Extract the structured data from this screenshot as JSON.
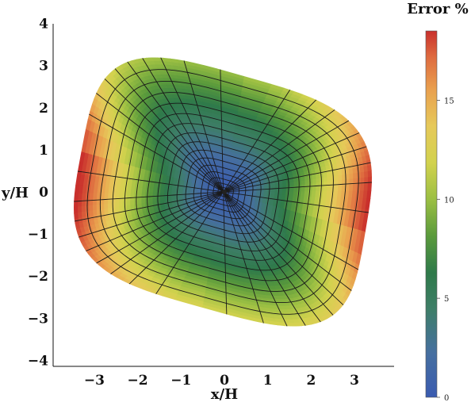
{
  "chart_data": {
    "type": "heatmap",
    "xlabel": "x/H",
    "ylabel": "y/H",
    "xlim": [
      -4.1,
      4
    ],
    "ylim": [
      -4.1,
      4.1
    ],
    "x_ticks": [
      -3,
      -2,
      -1,
      0,
      1,
      2,
      3
    ],
    "y_ticks": [
      4,
      3,
      2,
      1,
      0,
      -1,
      -2,
      -3,
      -4
    ],
    "colorbar": {
      "title": "Error %",
      "range": [
        0,
        18.5
      ],
      "ticks": [
        0,
        5,
        10,
        15
      ],
      "colormap": [
        "#3a5bb0",
        "#466fa0",
        "#3e7e68",
        "#2f7a4a",
        "#5a9a3c",
        "#9bbf43",
        "#d2d24e",
        "#e6c95a",
        "#e9a04e",
        "#de6a3f",
        "#c9302c"
      ]
    },
    "surface": {
      "description_values": "Error field over a rounded quadrilateral domain; minimum (~0%) at the origin, rising toward the edges; maxima (~18%) near the left-lower and right-upper edges",
      "min_error": 0,
      "max_error": 18.5,
      "center": [
        0,
        0
      ],
      "corners": [
        [
          -2.8,
          3.7
        ],
        [
          3.7,
          1.8
        ],
        [
          2.8,
          -3.7
        ],
        [
          -3.8,
          -1.8
        ]
      ]
    },
    "mesh": {
      "rings": 16,
      "spokes": 36
    }
  }
}
